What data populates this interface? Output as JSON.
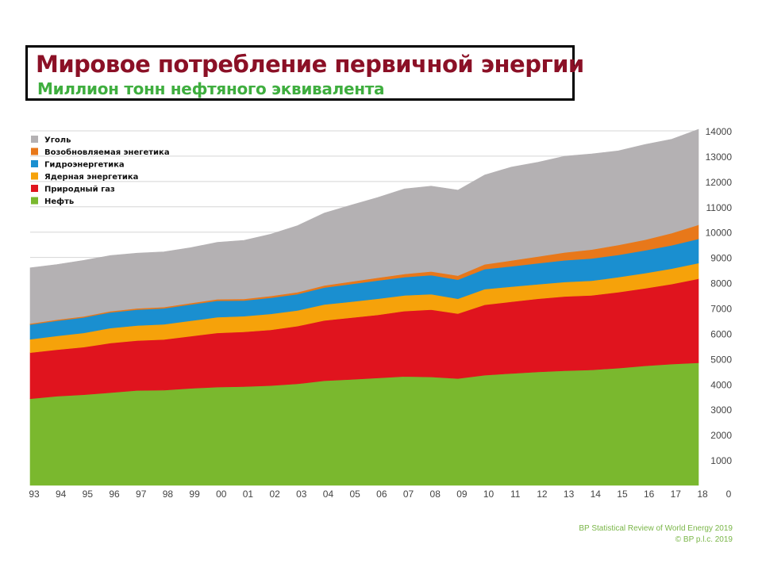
{
  "header": {
    "title": "Мировое потребление первичной энергии",
    "subtitle": "Миллион тонн нефтяного эквивалента"
  },
  "source": {
    "line1": "BP Statistical Review of World Energy 2019",
    "line2": "© BP p.l.c. 2019"
  },
  "chart_data": {
    "type": "area",
    "stacked": true,
    "categories": [
      "93",
      "94",
      "95",
      "96",
      "97",
      "98",
      "99",
      "00",
      "01",
      "02",
      "03",
      "04",
      "05",
      "06",
      "07",
      "08",
      "09",
      "10",
      "11",
      "12",
      "13",
      "14",
      "15",
      "16",
      "17",
      "18"
    ],
    "series": [
      {
        "name": "Нефть",
        "color": "#7ab82e",
        "values": [
          3420,
          3520,
          3580,
          3660,
          3750,
          3760,
          3830,
          3880,
          3900,
          3940,
          4010,
          4130,
          4180,
          4240,
          4300,
          4280,
          4220,
          4350,
          4420,
          4480,
          4530,
          4560,
          4630,
          4720,
          4790,
          4840
        ]
      },
      {
        "name": "Природный газ",
        "color": "#e0141e",
        "values": [
          1820,
          1840,
          1880,
          1960,
          1970,
          2000,
          2060,
          2140,
          2160,
          2200,
          2280,
          2380,
          2440,
          2490,
          2580,
          2660,
          2560,
          2780,
          2830,
          2890,
          2930,
          2940,
          3000,
          3060,
          3160,
          3320
        ]
      },
      {
        "name": "Ядерная энергетика",
        "color": "#f6a20a",
        "values": [
          530,
          540,
          560,
          590,
          590,
          600,
          610,
          620,
          620,
          630,
          620,
          630,
          630,
          640,
          620,
          610,
          590,
          620,
          600,
          570,
          570,
          580,
          590,
          600,
          610,
          620
        ]
      },
      {
        "name": "Гидроэнергетика",
        "color": "#1a8fd0",
        "values": [
          580,
          600,
          610,
          620,
          630,
          630,
          640,
          650,
          620,
          640,
          640,
          670,
          700,
          720,
          720,
          750,
          750,
          790,
          800,
          830,
          860,
          880,
          880,
          900,
          920,
          950
        ]
      },
      {
        "name": "Возобновляемая энегетика",
        "color": "#e8781a",
        "values": [
          40,
          42,
          45,
          48,
          50,
          52,
          56,
          60,
          64,
          70,
          76,
          84,
          96,
          110,
          126,
          148,
          160,
          190,
          230,
          270,
          310,
          350,
          390,
          420,
          480,
          560
        ]
      },
      {
        "name": "Уголь",
        "color": "#b4b1b3",
        "values": [
          2200,
          2180,
          2210,
          2200,
          2180,
          2180,
          2190,
          2250,
          2310,
          2440,
          2630,
          2860,
          3020,
          3170,
          3360,
          3370,
          3380,
          3530,
          3690,
          3720,
          3800,
          3780,
          3720,
          3760,
          3710,
          3770
        ]
      }
    ],
    "y_axis": {
      "min": 0,
      "max": 14000,
      "ticks": [
        0,
        1000,
        2000,
        3000,
        4000,
        5000,
        6000,
        7000,
        8000,
        9000,
        10000,
        11000,
        12000,
        13000,
        14000
      ]
    },
    "legend_position": "top-left",
    "grid": "horizontal"
  }
}
